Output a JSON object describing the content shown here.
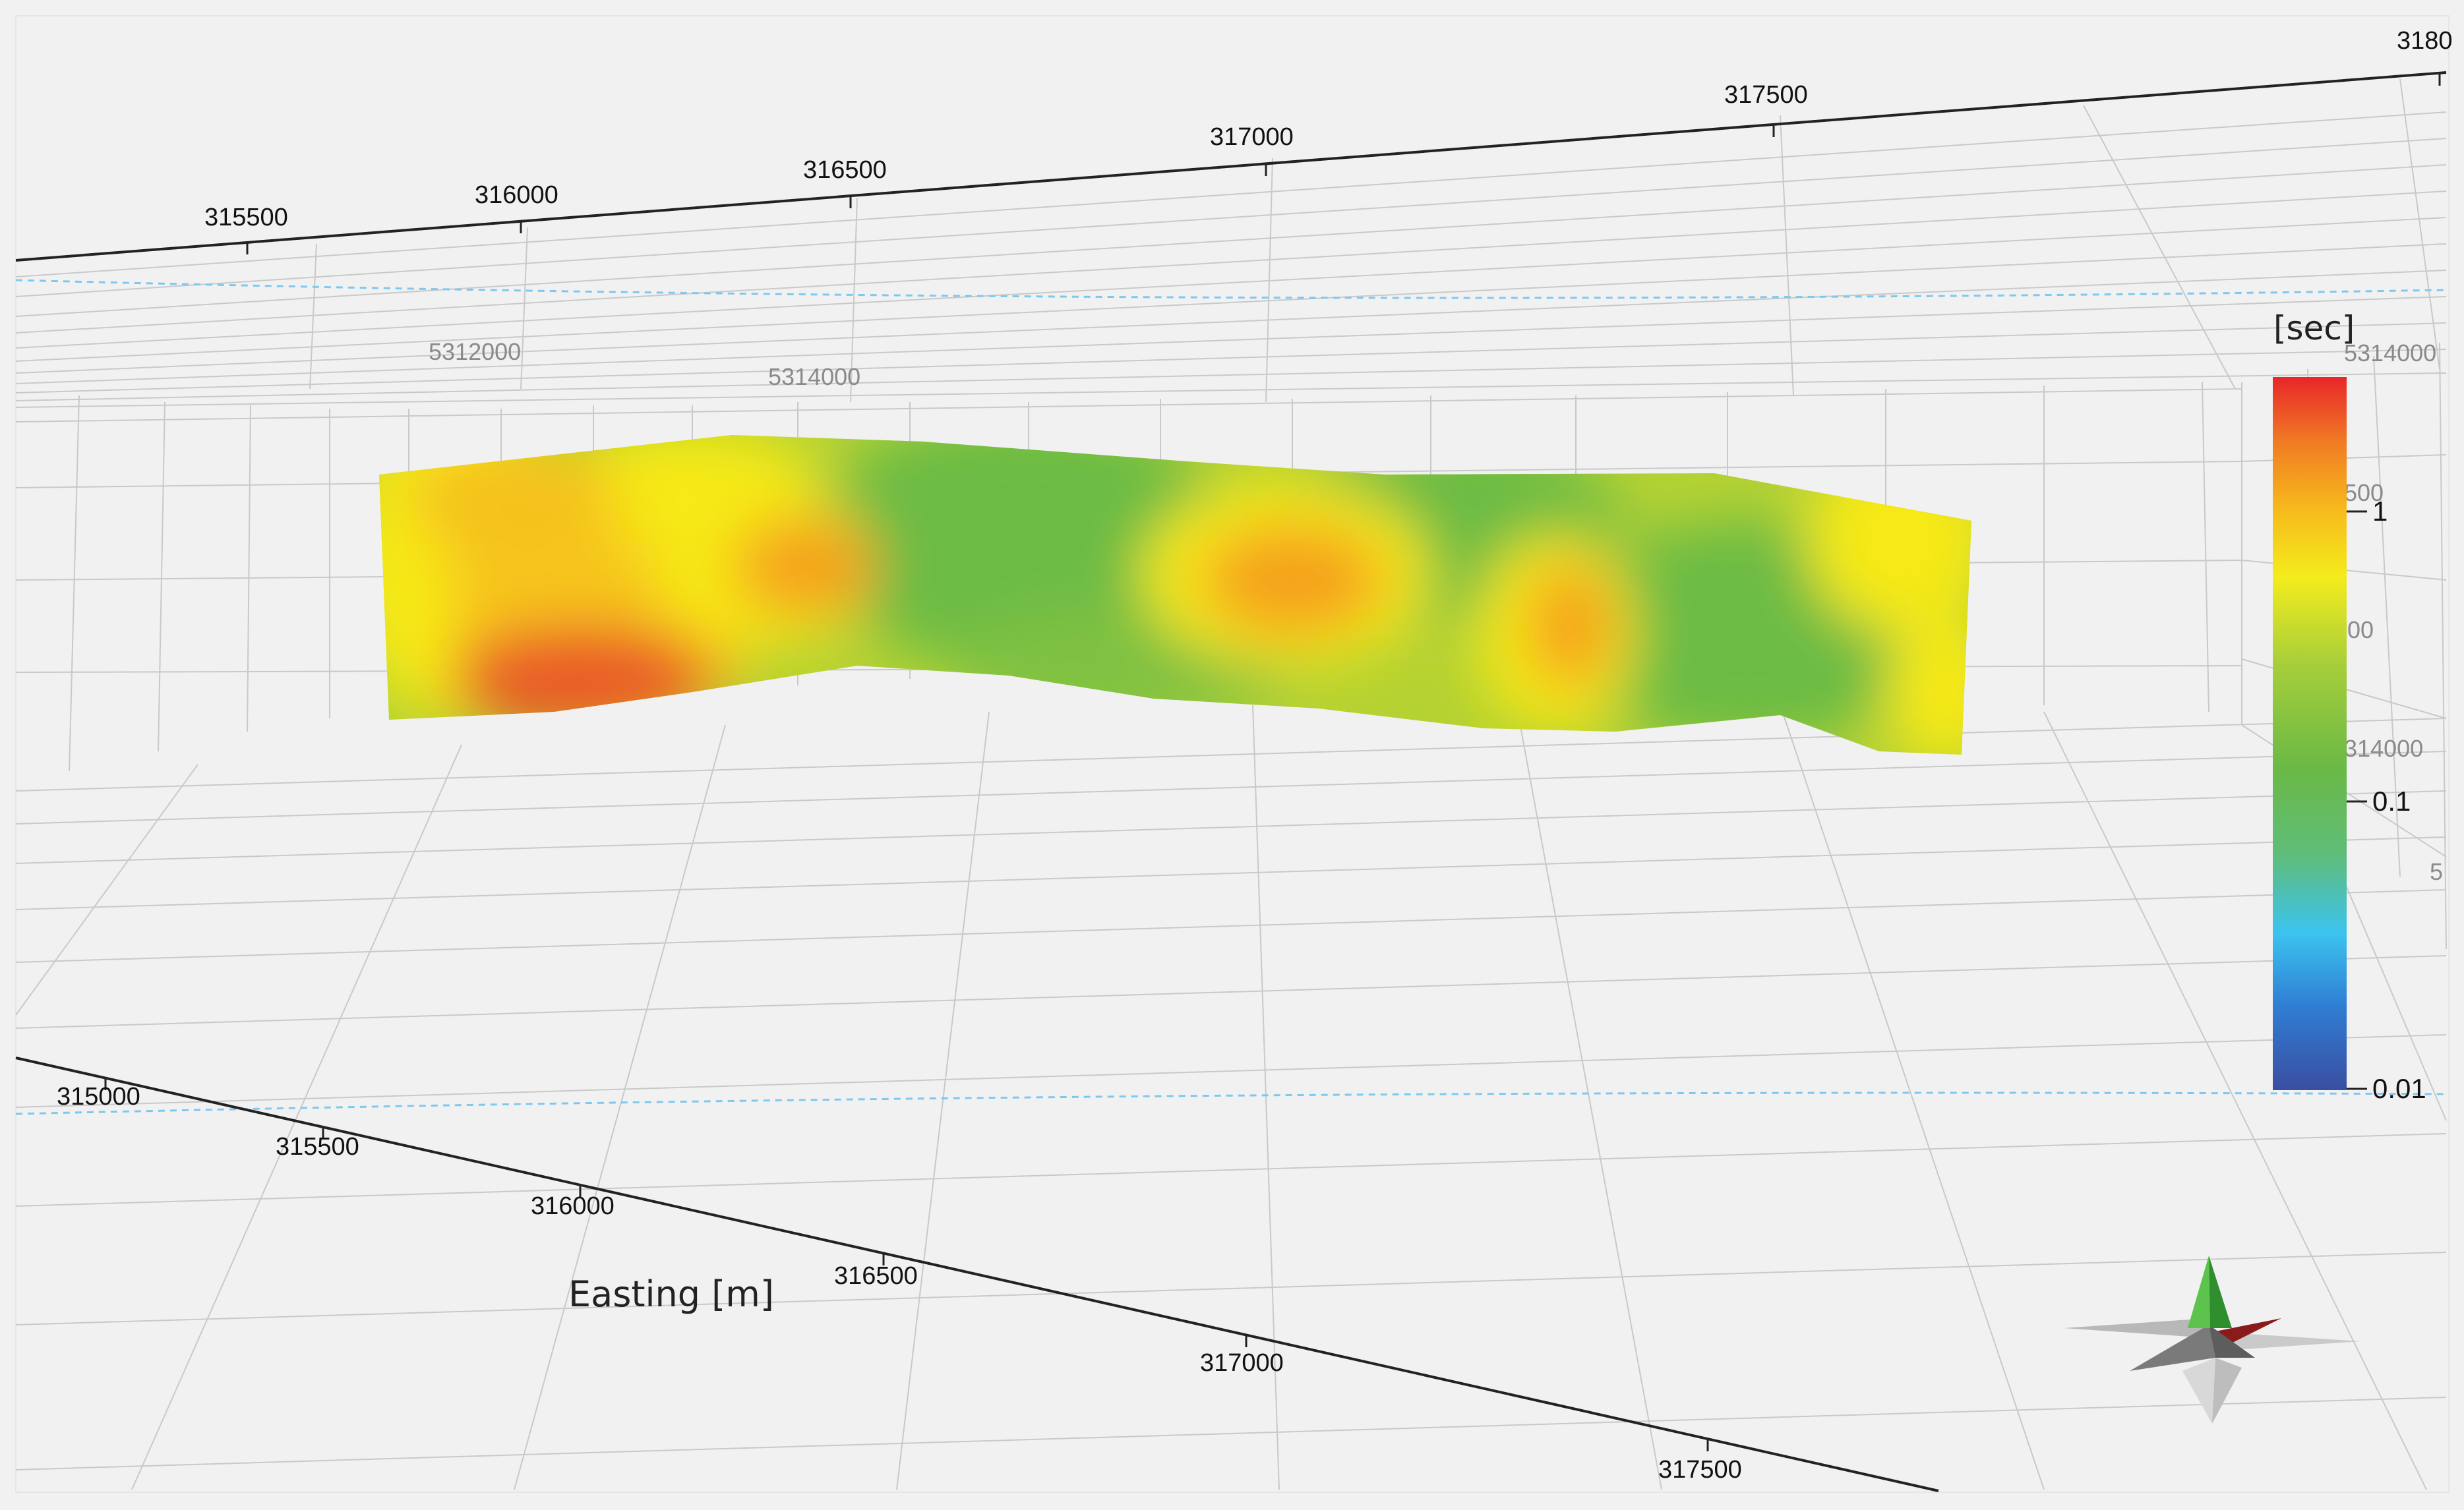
{
  "scene": {
    "background": "#f1f1f1",
    "grid_color": "#c9c9c9",
    "axis_color": "#222222",
    "water_line_color": "#7ec8f0"
  },
  "top_axis": {
    "ticks": [
      "315500",
      "316000",
      "316500",
      "317000",
      "317500",
      "3180"
    ]
  },
  "far_wall": {
    "ghost_labels": [
      "5312000",
      "5314000",
      "5314000",
      "314000",
      "500",
      "00",
      "5"
    ]
  },
  "bottom_axis": {
    "title": "Easting [m]",
    "ticks": [
      "315000",
      "315500",
      "316000",
      "316500",
      "317000",
      "317500"
    ]
  },
  "colorbar": {
    "title": "[sec]",
    "scale": "log",
    "range": [
      0.01,
      5
    ],
    "tick_labels": [
      "1",
      "0.1",
      "0.01"
    ],
    "colors": [
      "#3a4ea1",
      "#2f7fd4",
      "#3cc3ef",
      "#5fbd7a",
      "#6ab946",
      "#a8cf3a",
      "#f4ec1c",
      "#f6b61c",
      "#f07a23",
      "#e8262a"
    ]
  },
  "section": {
    "quantity": "sec",
    "palette": {
      "green": "#6cbb45",
      "yellow_green": "#b9d532",
      "yellow": "#f6e919",
      "orange": "#f5a21f",
      "red_orange": "#ea5a26"
    }
  },
  "compass": {
    "icon": "north-arrow-icon",
    "north_color": "#3aa83a",
    "east_color": "#8b1a1a"
  }
}
